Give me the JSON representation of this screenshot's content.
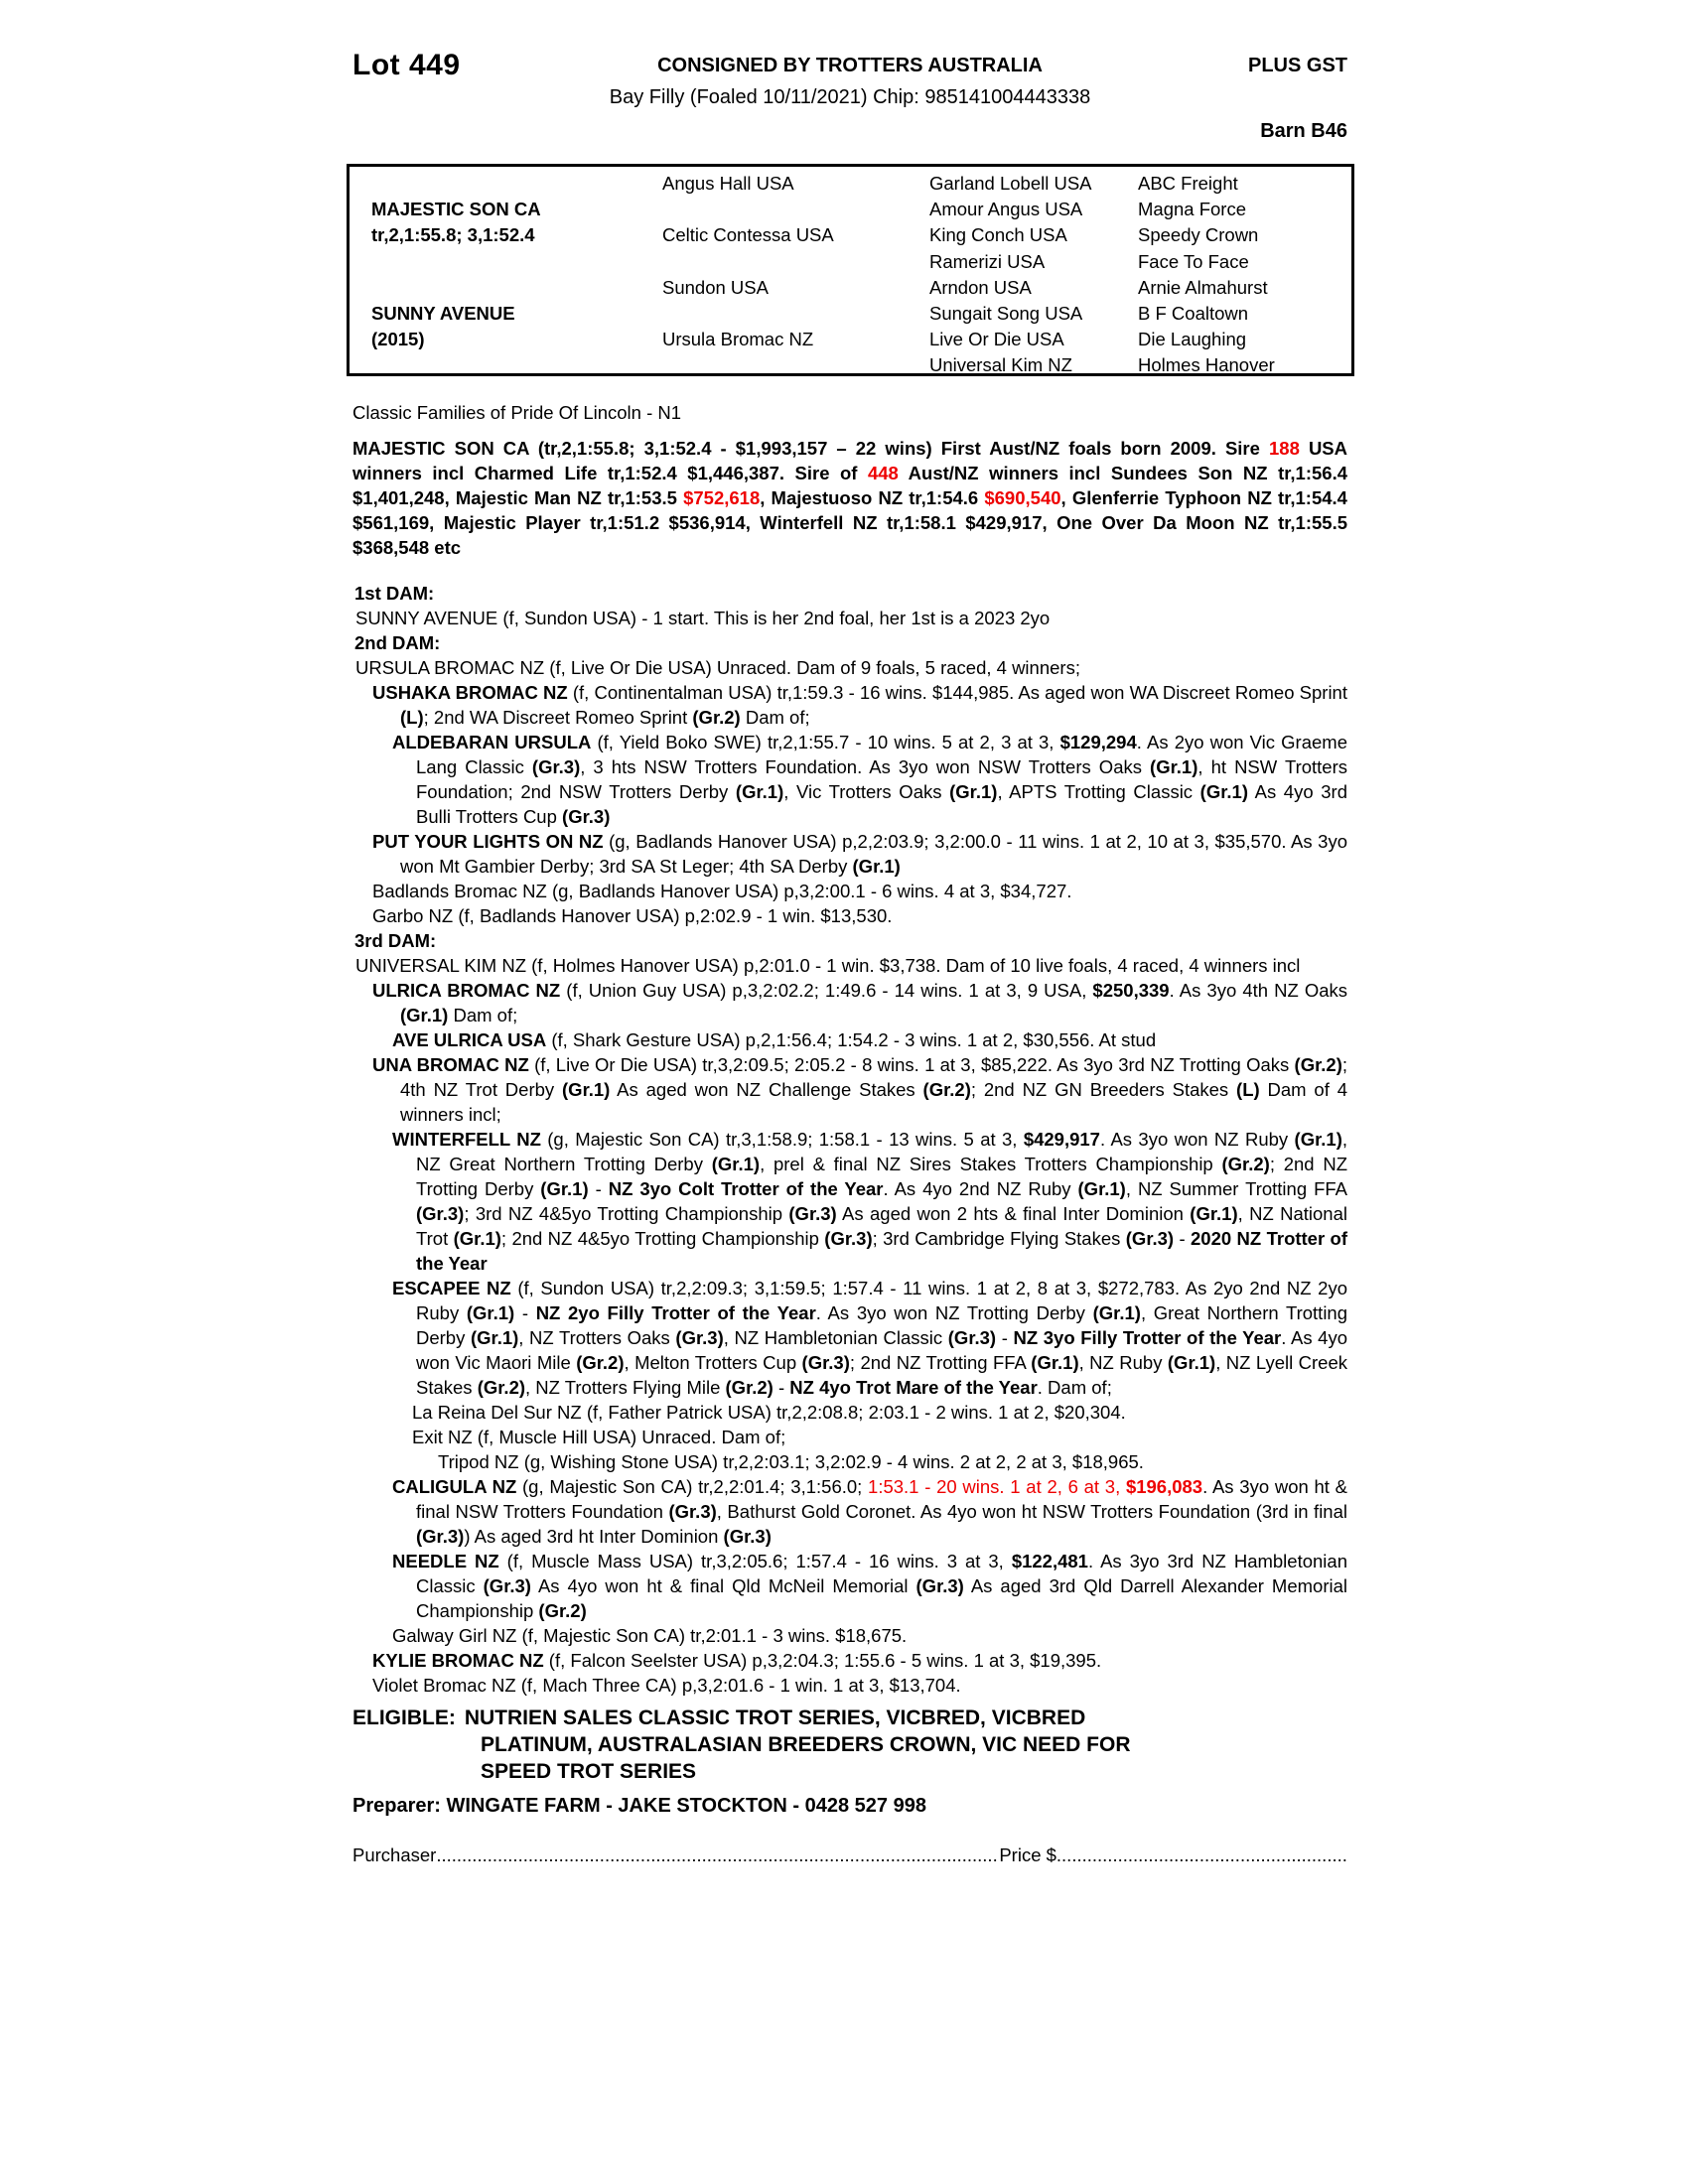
{
  "header": {
    "lot": "Lot 449",
    "consignor": "CONSIGNED BY TROTTERS AUSTRALIA",
    "gst": "PLUS GST",
    "description": "Bay Filly (Foaled 10/11/2021) Chip: 985141004443338",
    "barn": "Barn B46"
  },
  "pedigree_table": {
    "sire_name": "MAJESTIC SON CA",
    "sire_record": "tr,2,1:55.8; 3,1:52.4",
    "dam_name": "SUNNY AVENUE",
    "dam_year": "(2015)",
    "gen2": [
      "Angus Hall USA",
      "Celtic Contessa USA",
      "Sundon USA",
      "Ursula Bromac NZ"
    ],
    "gen3": [
      "Garland Lobell USA",
      "Amour Angus USA",
      "King Conch USA",
      "Ramerizi USA",
      "Arndon USA",
      "Sungait Song USA",
      "Live Or Die USA",
      "Universal Kim NZ"
    ],
    "gen4": [
      "ABC Freight",
      "Magna Force",
      "Speedy Crown",
      "Face To Face",
      "Arnie Almahurst",
      "B F Coaltown",
      "Die Laughing",
      "Holmes Hanover"
    ]
  },
  "family_note": "Classic Families of Pride Of Lincoln - N1",
  "sire_paragraph": [
    {
      "s": "b",
      "t": "MAJESTIC SON CA (tr,2,1:55.8; 3,1:52.4 - $1,993,157 – 22 wins) First Aust/NZ foals born 2009. Sire "
    },
    {
      "s": "br",
      "t": "188"
    },
    {
      "s": "b",
      "t": " USA winners incl Charmed Life tr,1:52.4 $1,446,387. Sire of "
    },
    {
      "s": "br",
      "t": "448"
    },
    {
      "s": "b",
      "t": " Aust/NZ winners incl Sundees Son NZ tr,1:56.4 $1,401,248, Majestic Man NZ tr,1:53.5 "
    },
    {
      "s": "br",
      "t": "$752,618"
    },
    {
      "s": "b",
      "t": ", Majestuoso NZ tr,1:54.6 "
    },
    {
      "s": "br",
      "t": "$690,540"
    },
    {
      "s": "b",
      "t": ", Glenferrie Typhoon NZ tr,1:54.4 $561,169, Majestic Player tr,1:51.2 $536,914, Winterfell NZ tr,1:58.1 $429,917, One Over Da Moon NZ tr,1:55.5 $368,548 etc"
    }
  ],
  "pedigree_entries": [
    {
      "i": "label",
      "seg": [
        {
          "s": "b",
          "t": "1st DAM:"
        }
      ]
    },
    {
      "i": "i0",
      "seg": [
        {
          "t": "SUNNY AVENUE (f, Sundon USA) - 1 start. This is her 2nd foal, her 1st is a 2023 2yo"
        }
      ]
    },
    {
      "i": "label",
      "seg": [
        {
          "s": "b",
          "t": "2nd DAM:"
        }
      ]
    },
    {
      "i": "i0",
      "seg": [
        {
          "t": "URSULA BROMAC NZ (f, Live Or Die USA) Unraced. Dam of 9 foals, 5 raced, 4 winners;"
        }
      ]
    },
    {
      "i": "i1",
      "seg": [
        {
          "s": "b",
          "t": "USHAKA BROMAC NZ"
        },
        {
          "t": " (f, Continentalman USA) tr,1:59.3 - 16 wins. $144,985. As aged won WA Discreet Romeo Sprint "
        },
        {
          "s": "b",
          "t": "(L)"
        },
        {
          "t": "; 2nd WA Discreet Romeo Sprint "
        },
        {
          "s": "b",
          "t": "(Gr.2)"
        },
        {
          "t": " Dam of;"
        }
      ]
    },
    {
      "i": "i2",
      "seg": [
        {
          "s": "b",
          "t": "ALDEBARAN URSULA"
        },
        {
          "t": " (f, Yield Boko SWE) tr,2,1:55.7 - 10 wins. 5 at 2, 3 at 3, "
        },
        {
          "s": "b",
          "t": "$129,294"
        },
        {
          "t": ". As 2yo won Vic Graeme Lang Classic "
        },
        {
          "s": "b",
          "t": "(Gr.3)"
        },
        {
          "t": ", 3 hts NSW Trotters Foundation. As 3yo won NSW Trotters Oaks "
        },
        {
          "s": "b",
          "t": "(Gr.1)"
        },
        {
          "t": ", ht NSW Trotters Foundation; 2nd NSW Trotters Derby "
        },
        {
          "s": "b",
          "t": "(Gr.1)"
        },
        {
          "t": ", Vic Trotters Oaks "
        },
        {
          "s": "b",
          "t": "(Gr.1)"
        },
        {
          "t": ", APTS Trotting Classic "
        },
        {
          "s": "b",
          "t": "(Gr.1)"
        },
        {
          "t": " As 4yo 3rd Bulli Trotters Cup "
        },
        {
          "s": "b",
          "t": "(Gr.3)"
        }
      ]
    },
    {
      "i": "i1",
      "seg": [
        {
          "s": "b",
          "t": "PUT YOUR LIGHTS ON NZ"
        },
        {
          "t": " (g, Badlands Hanover USA) p,2,2:03.9; 3,2:00.0 - 11 wins. 1 at 2, 10 at 3, $35,570. As 3yo won Mt Gambier Derby; 3rd SA St Leger; 4th SA Derby "
        },
        {
          "s": "b",
          "t": "(Gr.1)"
        }
      ]
    },
    {
      "i": "i1",
      "seg": [
        {
          "t": "Badlands Bromac NZ (g, Badlands Hanover USA) p,3,2:00.1 - 6 wins. 4 at 3, $34,727."
        }
      ]
    },
    {
      "i": "i1",
      "seg": [
        {
          "t": "Garbo NZ (f, Badlands Hanover USA) p,2:02.9 - 1 win. $13,530."
        }
      ]
    },
    {
      "i": "label",
      "seg": [
        {
          "s": "b",
          "t": "3rd DAM:"
        }
      ]
    },
    {
      "i": "i0",
      "seg": [
        {
          "t": "UNIVERSAL KIM NZ (f, Holmes Hanover USA) p,2:01.0 - 1 win. $3,738. Dam of 10 live foals, 4 raced, 4 winners incl"
        }
      ]
    },
    {
      "i": "i1",
      "seg": [
        {
          "s": "b",
          "t": "ULRICA BROMAC NZ"
        },
        {
          "t": " (f, Union Guy USA) p,3,2:02.2; 1:49.6 - 14 wins. 1 at 3, 9 USA, "
        },
        {
          "s": "b",
          "t": "$250,339"
        },
        {
          "t": ". As 3yo 4th NZ Oaks "
        },
        {
          "s": "b",
          "t": "(Gr.1)"
        },
        {
          "t": " Dam of;"
        }
      ]
    },
    {
      "i": "i2",
      "seg": [
        {
          "s": "b",
          "t": "AVE ULRICA USA"
        },
        {
          "t": " (f, Shark Gesture USA) p,2,1:56.4; 1:54.2 - 3 wins. 1 at 2, $30,556. At stud"
        }
      ]
    },
    {
      "i": "i1",
      "seg": [
        {
          "s": "b",
          "t": "UNA BROMAC NZ"
        },
        {
          "t": " (f, Live Or Die USA) tr,3,2:09.5; 2:05.2 - 8 wins. 1 at 3, $85,222. As 3yo 3rd NZ Trotting Oaks "
        },
        {
          "s": "b",
          "t": "(Gr.2)"
        },
        {
          "t": "; 4th NZ Trot Derby "
        },
        {
          "s": "b",
          "t": "(Gr.1)"
        },
        {
          "t": " As aged won NZ Challenge Stakes "
        },
        {
          "s": "b",
          "t": "(Gr.2)"
        },
        {
          "t": "; 2nd NZ GN Breeders Stakes "
        },
        {
          "s": "b",
          "t": "(L)"
        },
        {
          "t": " Dam of 4 winners incl;"
        }
      ]
    },
    {
      "i": "i2",
      "seg": [
        {
          "s": "b",
          "t": "WINTERFELL NZ"
        },
        {
          "t": " (g, Majestic Son CA) tr,3,1:58.9; 1:58.1 - 13 wins. 5 at 3, "
        },
        {
          "s": "b",
          "t": "$429,917"
        },
        {
          "t": ". As 3yo won NZ Ruby "
        },
        {
          "s": "b",
          "t": "(Gr.1)"
        },
        {
          "t": ", NZ Great Northern Trotting Derby "
        },
        {
          "s": "b",
          "t": "(Gr.1)"
        },
        {
          "t": ", prel & final NZ Sires Stakes Trotters Championship "
        },
        {
          "s": "b",
          "t": "(Gr.2)"
        },
        {
          "t": "; 2nd NZ Trotting Derby "
        },
        {
          "s": "b",
          "t": "(Gr.1)"
        },
        {
          "t": " - "
        },
        {
          "s": "b",
          "t": "NZ 3yo Colt Trotter of the Year"
        },
        {
          "t": ". As 4yo 2nd NZ Ruby "
        },
        {
          "s": "b",
          "t": "(Gr.1)"
        },
        {
          "t": ", NZ Summer Trotting FFA "
        },
        {
          "s": "b",
          "t": "(Gr.3)"
        },
        {
          "t": "; 3rd NZ 4&5yo Trotting Championship "
        },
        {
          "s": "b",
          "t": "(Gr.3)"
        },
        {
          "t": " As aged won 2 hts & final Inter Dominion "
        },
        {
          "s": "b",
          "t": "(Gr.1)"
        },
        {
          "t": ", NZ National Trot "
        },
        {
          "s": "b",
          "t": "(Gr.1)"
        },
        {
          "t": "; 2nd NZ 4&5yo Trotting Championship "
        },
        {
          "s": "b",
          "t": "(Gr.3)"
        },
        {
          "t": "; 3rd Cambridge Flying Stakes "
        },
        {
          "s": "b",
          "t": "(Gr.3)"
        },
        {
          "t": " - "
        },
        {
          "s": "b",
          "t": "2020 NZ Trotter of the Year"
        }
      ]
    },
    {
      "i": "i2",
      "seg": [
        {
          "s": "b",
          "t": "ESCAPEE NZ"
        },
        {
          "t": " (f, Sundon USA) tr,2,2:09.3; 3,1:59.5; 1:57.4 - 11 wins. 1 at 2, 8 at 3, $272,783. As 2yo 2nd NZ 2yo Ruby "
        },
        {
          "s": "b",
          "t": "(Gr.1)"
        },
        {
          "t": " - "
        },
        {
          "s": "b",
          "t": "NZ 2yo Filly Trotter of the Year"
        },
        {
          "t": ". As 3yo won NZ Trotting Derby "
        },
        {
          "s": "b",
          "t": "(Gr.1)"
        },
        {
          "t": ", Great Northern Trotting Derby "
        },
        {
          "s": "b",
          "t": "(Gr.1)"
        },
        {
          "t": ", NZ Trotters Oaks "
        },
        {
          "s": "b",
          "t": "(Gr.3)"
        },
        {
          "t": ", NZ Hambletonian Classic "
        },
        {
          "s": "b",
          "t": "(Gr.3)"
        },
        {
          "t": " - "
        },
        {
          "s": "b",
          "t": "NZ 3yo Filly Trotter of the Year"
        },
        {
          "t": ". As 4yo won Vic Maori Mile "
        },
        {
          "s": "b",
          "t": "(Gr.2)"
        },
        {
          "t": ", Melton Trotters Cup "
        },
        {
          "s": "b",
          "t": "(Gr.3)"
        },
        {
          "t": "; 2nd NZ Trotting FFA "
        },
        {
          "s": "b",
          "t": "(Gr.1)"
        },
        {
          "t": ", NZ Ruby "
        },
        {
          "s": "b",
          "t": "(Gr.1)"
        },
        {
          "t": ", NZ Lyell Creek Stakes "
        },
        {
          "s": "b",
          "t": "(Gr.2)"
        },
        {
          "t": ", NZ Trotters Flying Mile "
        },
        {
          "s": "b",
          "t": "(Gr.2)"
        },
        {
          "t": " - "
        },
        {
          "s": "b",
          "t": "NZ 4yo Trot Mare of the Year"
        },
        {
          "t": ". Dam of;"
        }
      ]
    },
    {
      "i": "i3",
      "seg": [
        {
          "t": "La Reina Del Sur NZ (f, Father Patrick USA) tr,2,2:08.8; 2:03.1 - 2 wins. 1 at 2, $20,304."
        }
      ]
    },
    {
      "i": "i3",
      "seg": [
        {
          "t": "Exit NZ (f, Muscle Hill USA) Unraced. Dam of;"
        }
      ]
    },
    {
      "i": "i4",
      "seg": [
        {
          "t": "Tripod NZ (g, Wishing Stone USA) tr,2,2:03.1; 3,2:02.9 - 4 wins. 2 at 2, 2 at 3, $18,965."
        }
      ]
    },
    {
      "i": "i2",
      "seg": [
        {
          "s": "b",
          "t": "CALIGULA NZ"
        },
        {
          "t": " (g, Majestic Son CA) tr,2,2:01.4; 3,1:56.0; "
        },
        {
          "s": "r",
          "t": "1:53.1 - 20 wins. 1 at 2, 6 at 3, "
        },
        {
          "s": "br",
          "t": "$196,083"
        },
        {
          "t": ". As 3yo won ht & final NSW Trotters Foundation "
        },
        {
          "s": "b",
          "t": "(Gr.3)"
        },
        {
          "t": ", Bathurst Gold Coronet. As 4yo won ht NSW Trotters Foundation (3rd in final "
        },
        {
          "s": "b",
          "t": "(Gr.3)"
        },
        {
          "t": ") As aged 3rd ht Inter Dominion "
        },
        {
          "s": "b",
          "t": "(Gr.3)"
        }
      ]
    },
    {
      "i": "i2",
      "seg": [
        {
          "s": "b",
          "t": "NEEDLE NZ"
        },
        {
          "t": " (f, Muscle Mass USA) tr,3,2:05.6; 1:57.4 - 16 wins. 3 at 3, "
        },
        {
          "s": "b",
          "t": "$122,481"
        },
        {
          "t": ". As 3yo 3rd NZ Hambletonian Classic "
        },
        {
          "s": "b",
          "t": "(Gr.3)"
        },
        {
          "t": " As 4yo won ht & final Qld McNeil Memorial "
        },
        {
          "s": "b",
          "t": "(Gr.3)"
        },
        {
          "t": " As aged 3rd Qld Darrell Alexander Memorial Championship "
        },
        {
          "s": "b",
          "t": "(Gr.2)"
        }
      ]
    },
    {
      "i": "i2",
      "seg": [
        {
          "t": "Galway Girl NZ (f, Majestic Son CA) tr,2:01.1 - 3 wins. $18,675."
        }
      ]
    },
    {
      "i": "i1",
      "seg": [
        {
          "s": "b",
          "t": "KYLIE BROMAC NZ"
        },
        {
          "t": " (f, Falcon Seelster USA) p,3,2:04.3; 1:55.6 - 5 wins. 1 at 3, $19,395."
        }
      ]
    },
    {
      "i": "i1",
      "seg": [
        {
          "t": "Violet Bromac NZ (f, Mach Three CA) p,3,2:01.6 - 1 win. 1 at 3, $13,704."
        }
      ]
    }
  ],
  "eligible": {
    "label": "ELIGIBLE:",
    "lines": [
      "NUTRIEN SALES CLASSIC TROT SERIES, VICBRED, VICBRED",
      "PLATINUM, AUSTRALASIAN BREEDERS CROWN, VIC NEED FOR",
      "SPEED TROT SERIES"
    ]
  },
  "preparer": "Preparer: WINGATE FARM - JAKE STOCKTON - 0428 527 998",
  "purchaser": {
    "label": "Purchaser",
    "leader1": "........................................................................................................................",
    "price_label": "Price $",
    "leader2": "......................................................................."
  }
}
